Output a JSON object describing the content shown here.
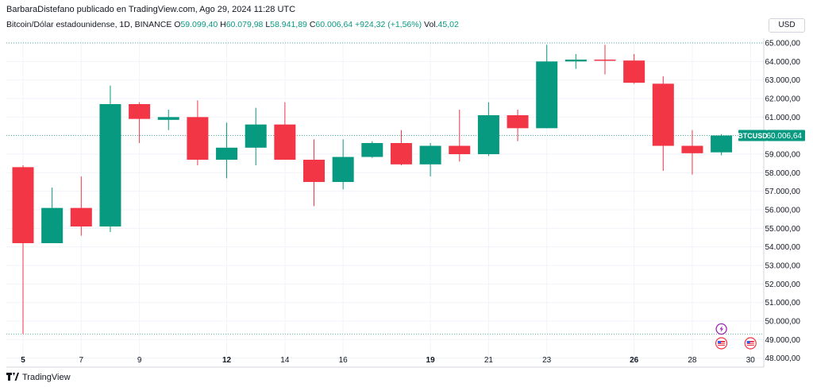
{
  "header": {
    "published": "BarbaraDistefano publicado en TradingView.com, Ago 29, 2024 11:28 UTC"
  },
  "legend": {
    "symbol": "Bitcoin/Dólar estadounidense, 1D, BINANCE",
    "o_label": "O",
    "o_value": "59.099,40",
    "h_label": "H",
    "h_value": "60.079,98",
    "l_label": "L",
    "l_value": "58.941,89",
    "c_label": "C",
    "c_value": "60.006,64",
    "change": "+924,32 (+1,56%)",
    "vol_label": "Vol.",
    "vol_value": "45,02"
  },
  "currency_button": "USD",
  "price_tag": {
    "symbol": "BTCUSD",
    "value": "60.006,64"
  },
  "footer": {
    "brand": "TradingView"
  },
  "colors": {
    "up": "#089981",
    "down": "#f23645",
    "grid": "#f0f3fa",
    "text": "#131722"
  },
  "chart_data": {
    "type": "candlestick",
    "ylim": [
      47600,
      65600
    ],
    "grid": true,
    "y_ticks": [
      48000,
      49000,
      50000,
      51000,
      52000,
      53000,
      54000,
      55000,
      56000,
      57000,
      58000,
      59000,
      60000,
      61000,
      62000,
      63000,
      64000,
      65000
    ],
    "y_tick_labels": [
      "48.000,00",
      "49.000,00",
      "50.000,00",
      "51.000,00",
      "52.000,00",
      "53.000,00",
      "54.000,00",
      "55.000,00",
      "56.000,00",
      "57.000,00",
      "58.000,00",
      "59.000,00",
      "60.000,00",
      "61.000,00",
      "62.000,00",
      "63.000,00",
      "64.000,00",
      "65.000,00"
    ],
    "x_tick_labels": [
      {
        "day": 5,
        "label": "5",
        "bold": true
      },
      {
        "day": 7,
        "label": "7",
        "bold": false
      },
      {
        "day": 9,
        "label": "9",
        "bold": false
      },
      {
        "day": 12,
        "label": "12",
        "bold": true
      },
      {
        "day": 14,
        "label": "14",
        "bold": false
      },
      {
        "day": 16,
        "label": "16",
        "bold": false
      },
      {
        "day": 19,
        "label": "19",
        "bold": true
      },
      {
        "day": 21,
        "label": "21",
        "bold": false
      },
      {
        "day": 23,
        "label": "23",
        "bold": false
      },
      {
        "day": 26,
        "label": "26",
        "bold": true
      },
      {
        "day": 28,
        "label": "28",
        "bold": false
      },
      {
        "day": 30,
        "label": "30",
        "bold": false
      }
    ],
    "first_day": 5,
    "last_day": 30,
    "reference_lines": [
      65000,
      60006.64,
      49300
    ],
    "candles": [
      {
        "day": 5,
        "o": 58300,
        "h": 58400,
        "l": 49300,
        "c": 54200
      },
      {
        "day": 6,
        "o": 54200,
        "h": 57200,
        "l": 54200,
        "c": 56100
      },
      {
        "day": 7,
        "o": 56100,
        "h": 57800,
        "l": 54600,
        "c": 55100
      },
      {
        "day": 8,
        "o": 55100,
        "h": 62700,
        "l": 54800,
        "c": 61700
      },
      {
        "day": 9,
        "o": 61700,
        "h": 61800,
        "l": 59600,
        "c": 60900
      },
      {
        "day": 10,
        "o": 60850,
        "h": 61400,
        "l": 60300,
        "c": 61000
      },
      {
        "day": 11,
        "o": 61000,
        "h": 61900,
        "l": 58400,
        "c": 58700
      },
      {
        "day": 12,
        "o": 58700,
        "h": 60700,
        "l": 57700,
        "c": 59350
      },
      {
        "day": 13,
        "o": 59350,
        "h": 61500,
        "l": 58400,
        "c": 60600
      },
      {
        "day": 14,
        "o": 60600,
        "h": 61800,
        "l": 58700,
        "c": 58700
      },
      {
        "day": 15,
        "o": 58700,
        "h": 59800,
        "l": 56200,
        "c": 57500
      },
      {
        "day": 16,
        "o": 57500,
        "h": 59800,
        "l": 57100,
        "c": 58850
      },
      {
        "day": 17,
        "o": 58850,
        "h": 59700,
        "l": 58800,
        "c": 59600
      },
      {
        "day": 18,
        "o": 59600,
        "h": 60300,
        "l": 58400,
        "c": 58450
      },
      {
        "day": 19,
        "o": 58450,
        "h": 59600,
        "l": 57800,
        "c": 59450
      },
      {
        "day": 20,
        "o": 59450,
        "h": 61400,
        "l": 58600,
        "c": 59000
      },
      {
        "day": 21,
        "o": 59000,
        "h": 61800,
        "l": 58900,
        "c": 61100
      },
      {
        "day": 22,
        "o": 61100,
        "h": 61400,
        "l": 59700,
        "c": 60400
      },
      {
        "day": 23,
        "o": 60400,
        "h": 64900,
        "l": 60400,
        "c": 64000
      },
      {
        "day": 24,
        "o": 64000,
        "h": 64400,
        "l": 63600,
        "c": 64100
      },
      {
        "day": 25,
        "o": 64100,
        "h": 64900,
        "l": 63300,
        "c": 64050
      },
      {
        "day": 26,
        "o": 64050,
        "h": 64400,
        "l": 62800,
        "c": 62850
      },
      {
        "day": 27,
        "o": 62800,
        "h": 63200,
        "l": 58100,
        "c": 59450
      },
      {
        "day": 28,
        "o": 59450,
        "h": 60300,
        "l": 57900,
        "c": 59050
      },
      {
        "day": 29,
        "o": 59099.4,
        "h": 60079.98,
        "l": 58941.89,
        "c": 60006.64
      }
    ],
    "event_markers": [
      {
        "day": 29,
        "kind": "lightning"
      },
      {
        "day": 29,
        "kind": "us-flag"
      },
      {
        "day": 30,
        "kind": "us-flag"
      }
    ]
  }
}
